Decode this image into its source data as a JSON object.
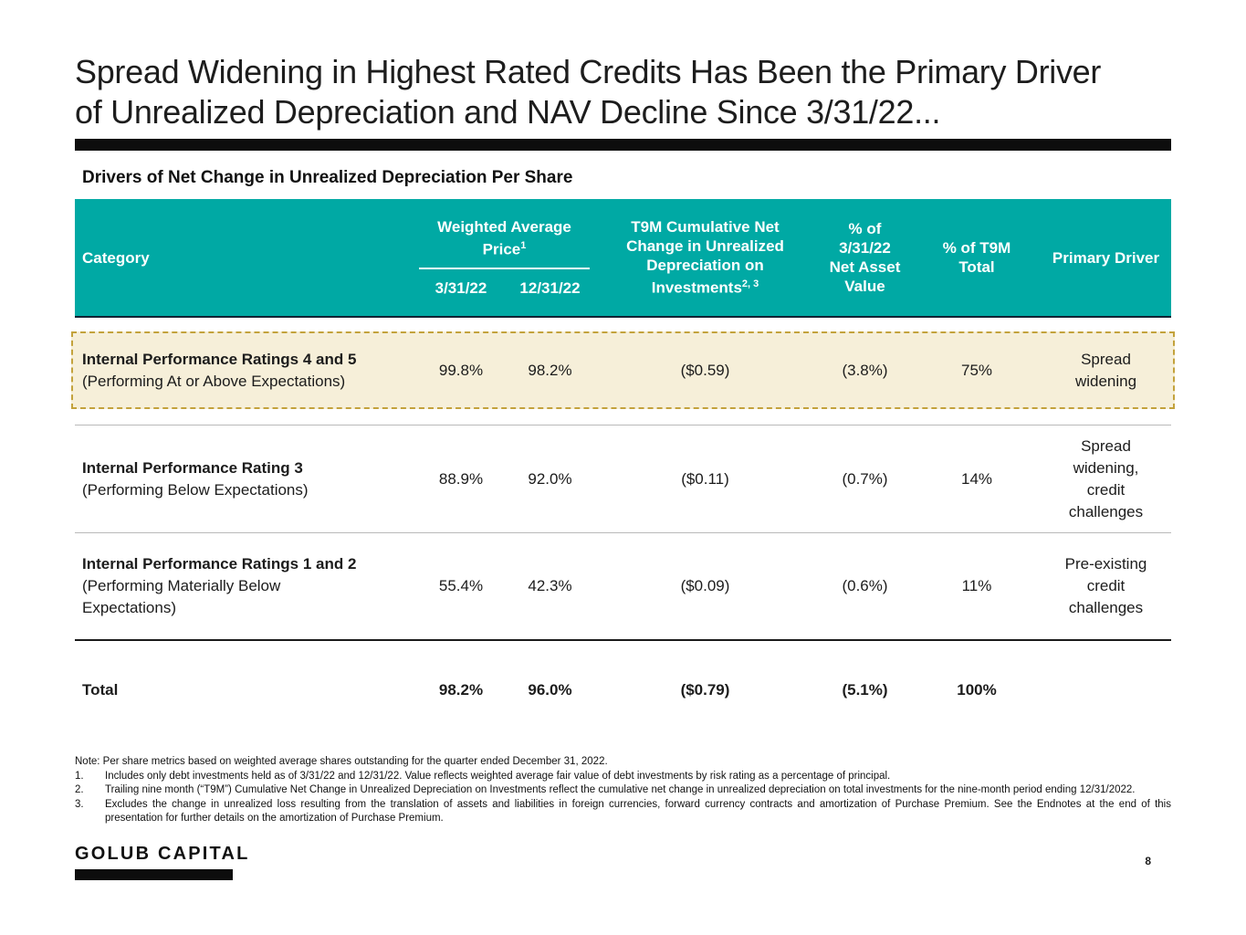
{
  "colors": {
    "teal": "#00A9A4",
    "highlight_bg": "#F6EFD9",
    "highlight_border": "#C3A23C"
  },
  "slide": {
    "title": "Spread Widening in Highest Rated Credits Has Been the Primary Driver\nof Unrealized Depreciation and NAV Decline Since 3/31/22..."
  },
  "table": {
    "title": "Drivers of Net Change in Unrealized Depreciation Per Share",
    "header": {
      "category": "Category",
      "wap_label": "Weighted Average\nPrice",
      "wap_sup": "1",
      "wap_col1": "3/31/22",
      "wap_col2": "12/31/22",
      "t9m_label": "T9M Cumulative Net\nChange in Unrealized\nDepreciation on\nInvestments",
      "t9m_sup": "2, 3",
      "nav_label": "% of\n3/31/22\nNet Asset\nValue",
      "t9m_total_label": "% of T9M\nTotal",
      "driver_label": "Primary Driver"
    },
    "rows": [
      {
        "name": "Internal Performance Ratings 4 and 5",
        "sub": "(Performing At or Above Expectations)",
        "p1": "99.8%",
        "p2": "98.2%",
        "t9m": "($0.59)",
        "nav": "(3.8%)",
        "pct": "75%",
        "driver": "Spread\nwidening"
      },
      {
        "name": "Internal Performance Rating 3",
        "sub": "(Performing Below Expectations)",
        "p1": "88.9%",
        "p2": "92.0%",
        "t9m": "($0.11)",
        "nav": "(0.7%)",
        "pct": "14%",
        "driver": "Spread\nwidening,\ncredit\nchallenges"
      },
      {
        "name": "Internal Performance Ratings 1 and 2",
        "sub": "(Performing Materially Below\nExpectations)",
        "p1": "55.4%",
        "p2": "42.3%",
        "t9m": "($0.09)",
        "nav": "(0.6%)",
        "pct": "11%",
        "driver": "Pre-existing\ncredit\nchallenges"
      }
    ],
    "total": {
      "label": "Total",
      "p1": "98.2%",
      "p2": "96.0%",
      "t9m": "($0.79)",
      "nav": "(5.1%)",
      "pct": "100%"
    }
  },
  "notes": {
    "note": "Note: Per share metrics based on weighted average shares outstanding for the quarter ended December 31, 2022.",
    "items": [
      {
        "num": "1.",
        "text": "Includes only debt investments held as of 3/31/22 and 12/31/22. Value reflects weighted average fair value of debt investments by risk rating as a percentage of principal."
      },
      {
        "num": "2.",
        "text": "Trailing nine month (“T9M”) Cumulative Net Change in Unrealized Depreciation on Investments reflect the cumulative net change in unrealized depreciation on total investments for the nine-month period ending 12/31/2022."
      },
      {
        "num": "3.",
        "text": "Excludes the change in unrealized loss resulting from the translation of assets and liabilities in foreign currencies, forward currency contracts and amortization of Purchase Premium. See the Endnotes at the end of this presentation for further details on the amortization of Purchase Premium."
      }
    ]
  },
  "footer": {
    "brand": "GOLUB CAPITAL",
    "page": "8"
  }
}
